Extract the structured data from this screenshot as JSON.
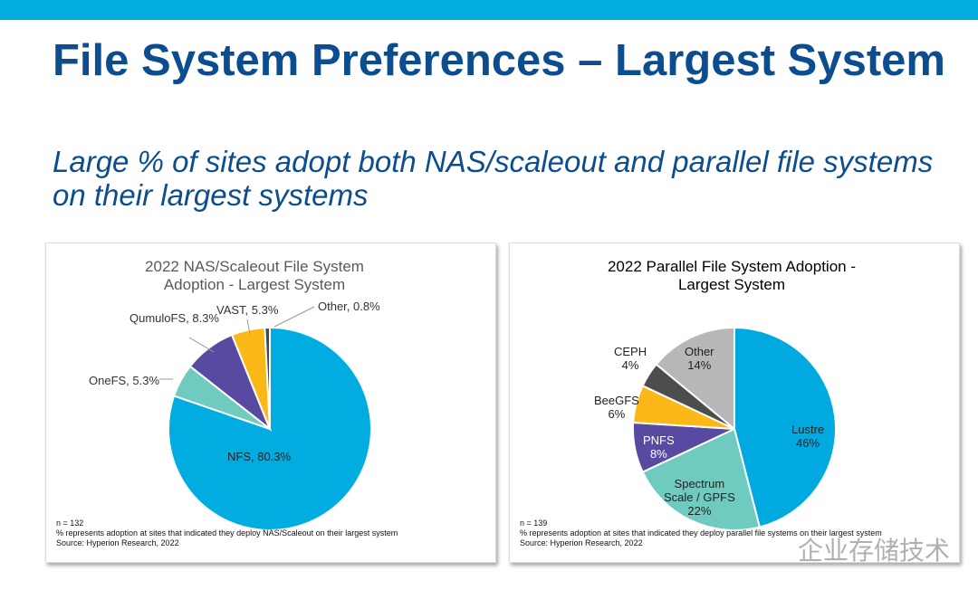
{
  "slide": {
    "title": "File System Preferences – Largest System",
    "subtitle": "Large % of sites adopt both NAS/scaleout and parallel file systems on their largest systems",
    "watermark": "企业存储技术"
  },
  "chart_data": [
    {
      "type": "pie",
      "title": "2022 NAS/Scaleout File System Adoption - Largest System",
      "categories": [
        "NFS",
        "OneFS",
        "QumuloFS",
        "VAST",
        "Other"
      ],
      "values": [
        80.3,
        5.3,
        8.3,
        5.3,
        0.8
      ],
      "labels": [
        "NFS, 80.3%",
        "OneFS, 5.3%",
        "QumuloFS, 8.3%",
        "VAST, 5.3%",
        "Other, 0.8%"
      ],
      "colors": [
        "#00ace0",
        "#6fcbc0",
        "#574aa0",
        "#fbb817",
        "#3d4a5a"
      ],
      "footnotes": [
        "n = 132",
        "% represents adoption at sites that indicated they deploy NAS/Scaleout on their largest system",
        "Source: Hyperion Research, 2022"
      ]
    },
    {
      "type": "pie",
      "title": "2022 Parallel File System Adoption - Largest System",
      "categories": [
        "Lustre",
        "Spectrum Scale / GPFS",
        "PNFS",
        "BeeGFS",
        "CEPH",
        "Other"
      ],
      "values": [
        46,
        22,
        8,
        6,
        4,
        14
      ],
      "labels": [
        "Lustre\n46%",
        "Spectrum\nScale / GPFS\n22%",
        "PNFS\n8%",
        "BeeGFS\n6%",
        "CEPH\n4%",
        "Other\n14%"
      ],
      "colors": [
        "#00a9e0",
        "#6fcbbf",
        "#574aa0",
        "#fbb817",
        "#4d4d4d",
        "#b7b7b7"
      ],
      "footnotes": [
        "n = 139",
        "% represents adoption at sites that indicated they deploy parallel file systems on their largest system",
        "Source: Hyperion Research, 2022"
      ]
    }
  ]
}
